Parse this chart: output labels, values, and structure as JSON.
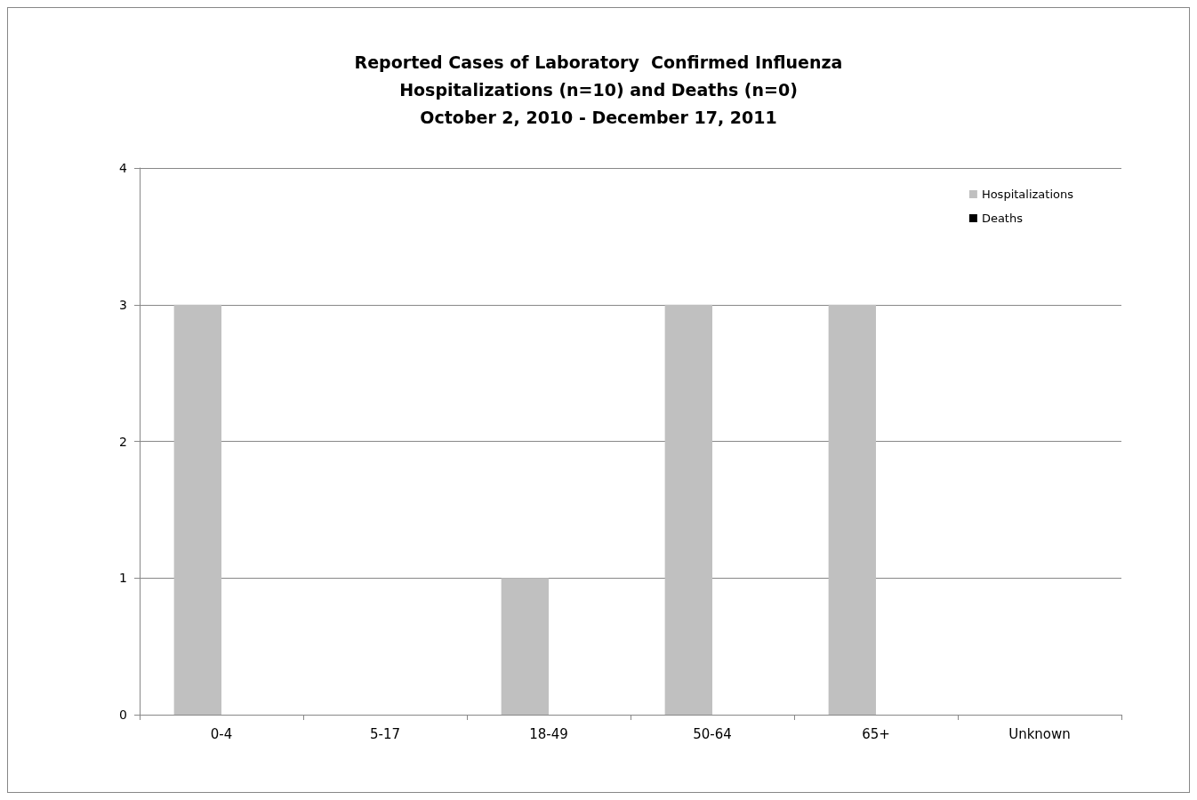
{
  "chart_data": {
    "type": "bar",
    "title": "Reported Cases of Laboratory  Confirmed Influenza\nHospitalizations (n=10) and Deaths (n=0)\nOctober 2, 2010 - December 17, 2011",
    "categories": [
      "0-4",
      "5-17",
      "18-49",
      "50-64",
      "65+",
      "Unknown"
    ],
    "series": [
      {
        "name": "Hospitalizations",
        "color": "#c0c0c0",
        "values": [
          3,
          0,
          1,
          3,
          3,
          0
        ]
      },
      {
        "name": "Deaths",
        "color": "#000000",
        "values": [
          0,
          0,
          0,
          0,
          0,
          0
        ]
      }
    ],
    "ylim": [
      0,
      4
    ],
    "yticks": [
      0,
      1,
      2,
      3,
      4
    ],
    "grid": "y",
    "legend": "top right"
  }
}
